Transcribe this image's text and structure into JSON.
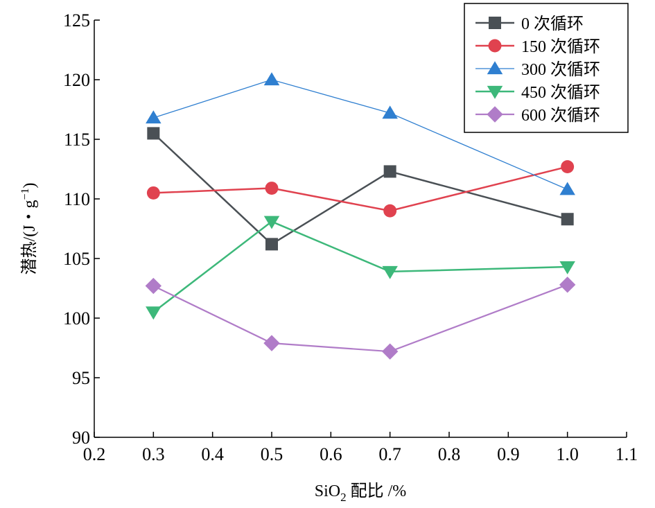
{
  "chart_data": {
    "type": "line",
    "x": [
      0.3,
      0.5,
      0.7,
      1.0
    ],
    "xlim": [
      0.2,
      1.1
    ],
    "ylim": [
      90,
      125
    ],
    "xticks": [
      "0.2",
      "0.3",
      "0.4",
      "0.5",
      "0.6",
      "0.7",
      "0.8",
      "0.9",
      "1.0",
      "1.1"
    ],
    "yticks": [
      "90",
      "95",
      "100",
      "105",
      "110",
      "115",
      "120",
      "125"
    ],
    "xlabel_prefix": "SiO",
    "xlabel_sub": "2",
    "xlabel_suffix": " 配比 /%",
    "ylabel_prefix": "潜热/(J・g",
    "ylabel_sup": "−1",
    "ylabel_suffix": ")",
    "grid": false,
    "legend_position": "top-right",
    "series": [
      {
        "name": "0 次循环",
        "values": [
          115.5,
          106.2,
          112.3,
          108.3
        ],
        "color": "#4a5055",
        "marker": "square"
      },
      {
        "name": "150 次循环",
        "values": [
          110.5,
          110.9,
          109.0,
          112.7
        ],
        "color": "#e0424f",
        "marker": "circle"
      },
      {
        "name": "300 次循环",
        "values": [
          116.8,
          120.0,
          117.2,
          110.8
        ],
        "color": "#2f7fd0",
        "marker": "triangle-up"
      },
      {
        "name": "450 次循环",
        "values": [
          100.5,
          108.1,
          103.9,
          104.3
        ],
        "color": "#3db87a",
        "marker": "triangle-down"
      },
      {
        "name": "600 次循环",
        "values": [
          102.7,
          97.9,
          97.2,
          102.8
        ],
        "color": "#b07cc8",
        "marker": "diamond"
      }
    ]
  }
}
